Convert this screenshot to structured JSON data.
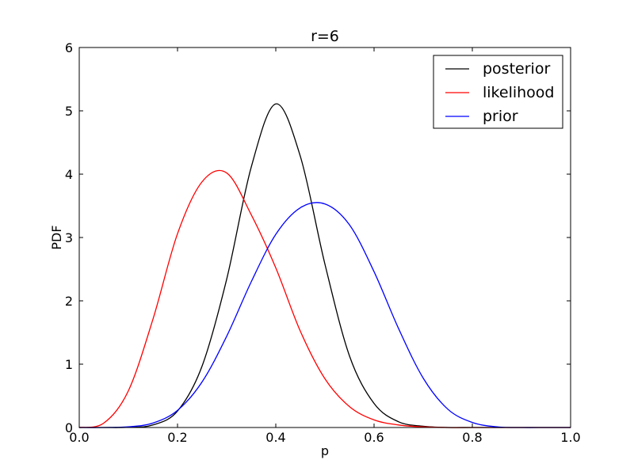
{
  "chart_data": {
    "type": "line",
    "title": "r=6",
    "xlabel": "p",
    "ylabel": "PDF",
    "xlim": [
      0.0,
      1.0
    ],
    "ylim": [
      0,
      6
    ],
    "xticks": [
      "0.0",
      "0.2",
      "0.4",
      "0.6",
      "0.8",
      "1.0"
    ],
    "yticks": [
      "0",
      "1",
      "2",
      "3",
      "4",
      "5",
      "6"
    ],
    "grid": false,
    "legend_position": "top-right",
    "x": [
      0.0,
      0.05,
      0.1,
      0.15,
      0.2,
      0.25,
      0.3,
      0.35,
      0.4,
      0.45,
      0.5,
      0.55,
      0.6,
      0.65,
      0.7,
      0.75,
      0.8,
      0.85,
      0.9,
      0.95,
      1.0
    ],
    "series": [
      {
        "name": "posterior",
        "color": "#000000",
        "values": [
          0,
          0,
          0.003,
          0.04,
          0.26,
          0.97,
          2.34,
          4.11,
          5.11,
          4.28,
          2.58,
          1.13,
          0.38,
          0.09,
          0.02,
          0,
          0,
          0,
          0,
          0,
          0
        ]
      },
      {
        "name": "likelihood",
        "color": "#ff0000",
        "values": [
          0,
          0.07,
          0.58,
          1.71,
          3.06,
          3.88,
          4.02,
          3.36,
          2.52,
          1.52,
          0.77,
          0.33,
          0.12,
          0.04,
          0.01,
          0,
          0,
          0,
          0,
          0,
          0
        ]
      },
      {
        "name": "prior",
        "color": "#0000ff",
        "values": [
          0,
          0,
          0.01,
          0.07,
          0.27,
          0.72,
          1.44,
          2.3,
          3.05,
          3.47,
          3.53,
          3.2,
          2.46,
          1.56,
          0.78,
          0.29,
          0.08,
          0.01,
          0,
          0,
          0
        ]
      }
    ]
  }
}
